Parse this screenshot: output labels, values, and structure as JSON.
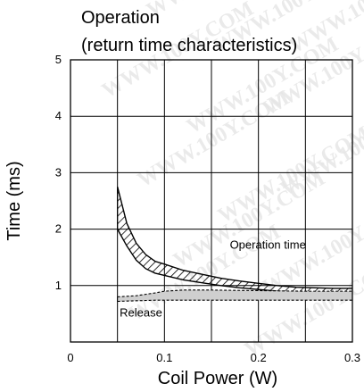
{
  "chart_data": {
    "type": "area",
    "title_lines": [
      "Operation",
      "(return time characteristics)"
    ],
    "xlabel": "Coil Power (W)",
    "ylabel": "Time (ms)",
    "xlim": [
      0,
      0.3
    ],
    "ylim": [
      0,
      5
    ],
    "x_ticks": [
      "0",
      "0.1",
      "0.2",
      "0.3"
    ],
    "y_ticks": [
      "1",
      "2",
      "3",
      "4",
      "5"
    ],
    "grid": true,
    "watermark": "WWW.100Y.COM",
    "series": [
      {
        "name": "Operation time",
        "style": "hatched",
        "x": [
          0.05,
          0.06,
          0.07,
          0.08,
          0.09,
          0.1,
          0.12,
          0.14,
          0.16,
          0.18,
          0.2,
          0.22,
          0.24,
          0.26,
          0.28,
          0.3
        ],
        "upper": [
          2.75,
          2.1,
          1.75,
          1.55,
          1.43,
          1.38,
          1.27,
          1.2,
          1.13,
          1.08,
          1.04,
          1.0,
          0.97,
          0.96,
          0.95,
          0.95
        ],
        "lower": [
          2.0,
          1.7,
          1.45,
          1.3,
          1.22,
          1.18,
          1.1,
          1.05,
          1.0,
          0.96,
          0.93,
          0.9,
          0.88,
          0.86,
          0.85,
          0.84
        ]
      },
      {
        "name": "Release",
        "style": "shaded",
        "x": [
          0.05,
          0.07,
          0.09,
          0.1,
          0.12,
          0.15,
          0.2,
          0.25,
          0.3
        ],
        "upper": [
          0.8,
          0.82,
          0.87,
          0.9,
          0.92,
          0.92,
          0.91,
          0.9,
          0.9
        ],
        "lower": [
          0.72,
          0.73,
          0.74,
          0.74,
          0.74,
          0.74,
          0.74,
          0.74,
          0.74
        ]
      }
    ],
    "annotations": [
      {
        "text": "Operation time",
        "x": 0.21,
        "y": 1.65
      },
      {
        "text": "Release",
        "x": 0.075,
        "y": 0.45
      }
    ],
    "colors": {
      "hatch": "#000000",
      "release_fill": "#cfcfcf",
      "watermark": "#e6e6e6"
    }
  }
}
